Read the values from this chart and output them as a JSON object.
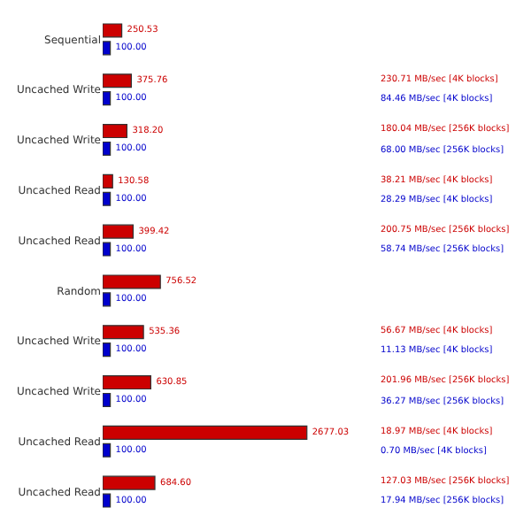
{
  "chart_data": {
    "type": "bar",
    "orientation": "horizontal",
    "categories": [
      "Sequential",
      "Uncached Write",
      "Uncached Write",
      "Uncached Read",
      "Uncached Read",
      "Random",
      "Uncached Write",
      "Uncached Write",
      "Uncached Read",
      "Uncached Read"
    ],
    "series": [
      {
        "color": "#cc0000",
        "values": [
          250.53,
          375.76,
          318.2,
          130.58,
          399.42,
          756.52,
          535.36,
          630.85,
          2677.03,
          684.6
        ],
        "value_labels": [
          "250.53",
          "375.76",
          "318.20",
          "130.58",
          "399.42",
          "756.52",
          "535.36",
          "630.85",
          "2677.03",
          "684.60"
        ]
      },
      {
        "color": "#0000cc",
        "values": [
          100,
          100,
          100,
          100,
          100,
          100,
          100,
          100,
          100,
          100
        ],
        "value_labels": [
          "100.00",
          "100.00",
          "100.00",
          "100.00",
          "100.00",
          "100.00",
          "100.00",
          "100.00",
          "100.00",
          "100.00"
        ]
      }
    ],
    "tick_labels": "y",
    "annotations": [
      "230.71 MB/sec [4K blocks]",
      "84.46 MB/sec [4K blocks]",
      "180.04 MB/sec [256K blocks]",
      "68.00 MB/sec [256K blocks]",
      "38.21 MB/sec [4K blocks]",
      "28.29 MB/sec [4K blocks]",
      "200.75 MB/sec [256K blocks]",
      "58.74 MB/sec [256K blocks]",
      "56.67 MB/sec [4K blocks]",
      "11.13 MB/sec [4K blocks]",
      "201.96 MB/sec [256K blocks]",
      "36.27 MB/sec [256K blocks]",
      "18.97 MB/sec [4K blocks]",
      "0.70 MB/sec [4K blocks]",
      "127.03 MB/sec [256K blocks]",
      "17.94 MB/sec [256K blocks]"
    ]
  }
}
